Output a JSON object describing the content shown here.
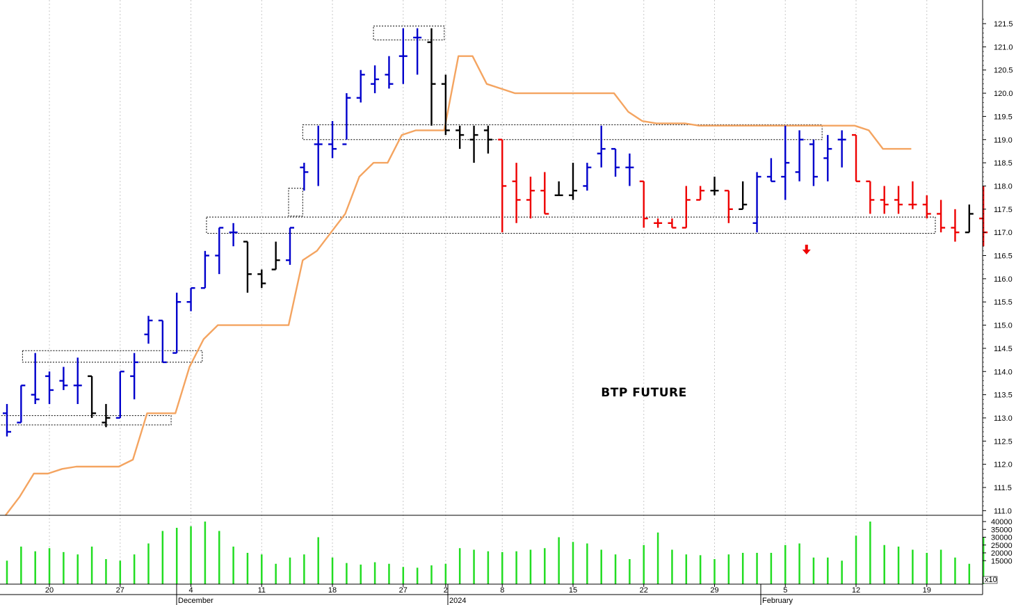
{
  "chart_data": {
    "type": "ohlc",
    "title": "BTP FUTURE",
    "price_axis": {
      "min": 111.0,
      "max": 121.5,
      "ticks": [
        "111.0",
        "111.5",
        "112.0",
        "112.5",
        "113.0",
        "113.5",
        "114.0",
        "114.5",
        "115.0",
        "115.5",
        "116.0",
        "116.5",
        "117.0",
        "117.5",
        "118.0",
        "118.5",
        "119.0",
        "119.5",
        "120.0",
        "120.5",
        "121.0",
        "121.5"
      ]
    },
    "volume_axis": {
      "max": 40000,
      "ticks": [
        "40000",
        "35000",
        "30000",
        "25000",
        "20000",
        "15000"
      ],
      "multiplier_label": "x10"
    },
    "x_axis": {
      "labels": [
        {
          "text": "20",
          "bar": 3
        },
        {
          "text": "27",
          "bar": 8
        },
        {
          "text": "December",
          "bar": 12
        },
        {
          "text": "4",
          "bar": 13
        },
        {
          "text": "11",
          "bar": 18
        },
        {
          "text": "18",
          "bar": 23
        },
        {
          "text": "27",
          "bar": 28
        },
        {
          "text": "2024",
          "bar": 31
        },
        {
          "text": "2",
          "bar": 31
        },
        {
          "text": "8",
          "bar": 35
        },
        {
          "text": "15",
          "bar": 40
        },
        {
          "text": "22",
          "bar": 45
        },
        {
          "text": "29",
          "bar": 50
        },
        {
          "text": "February",
          "bar": 53
        },
        {
          "text": "5",
          "bar": 55
        },
        {
          "text": "12",
          "bar": 60
        },
        {
          "text": "19",
          "bar": 65
        }
      ]
    },
    "colors": {
      "up": "#0000cc",
      "neutral": "#000000",
      "down": "#ee0000",
      "stop": "#f4a460",
      "volume": "#22dd22",
      "signal": "#ee0000"
    },
    "bars": [
      {
        "o": 113.1,
        "h": 113.3,
        "l": 112.6,
        "c": 112.7,
        "color": "up",
        "v": 15000
      },
      {
        "o": 112.9,
        "h": 113.7,
        "l": 112.9,
        "c": 113.7,
        "color": "up",
        "v": 24000
      },
      {
        "o": 113.5,
        "h": 114.4,
        "l": 113.3,
        "c": 113.4,
        "color": "up",
        "v": 21000
      },
      {
        "o": 113.9,
        "h": 114.0,
        "l": 113.3,
        "c": 113.6,
        "color": "up",
        "v": 23000
      },
      {
        "o": 113.8,
        "h": 114.1,
        "l": 113.6,
        "c": 113.7,
        "color": "up",
        "v": 20500
      },
      {
        "o": 113.7,
        "h": 114.3,
        "l": 113.3,
        "c": 113.7,
        "color": "up",
        "v": 19000
      },
      {
        "o": 113.9,
        "h": 113.9,
        "l": 113.0,
        "c": 113.1,
        "color": "neutral",
        "v": 24000
      },
      {
        "o": 112.9,
        "h": 113.3,
        "l": 112.8,
        "c": 113.0,
        "color": "neutral",
        "v": 16000
      },
      {
        "o": 113.0,
        "h": 114.0,
        "l": 113.0,
        "c": 114.0,
        "color": "up",
        "v": 15000
      },
      {
        "o": 113.9,
        "h": 114.4,
        "l": 113.4,
        "c": 114.2,
        "color": "up",
        "v": 19000
      },
      {
        "o": 114.8,
        "h": 115.2,
        "l": 114.6,
        "c": 115.1,
        "color": "up",
        "v": 26000
      },
      {
        "o": 115.1,
        "h": 115.1,
        "l": 114.2,
        "c": 114.2,
        "color": "up",
        "v": 34000
      },
      {
        "o": 114.4,
        "h": 115.7,
        "l": 114.4,
        "c": 115.5,
        "color": "up",
        "v": 36000
      },
      {
        "o": 115.5,
        "h": 115.8,
        "l": 115.3,
        "c": 115.8,
        "color": "up",
        "v": 37000
      },
      {
        "o": 115.8,
        "h": 116.6,
        "l": 115.8,
        "c": 116.5,
        "color": "up",
        "v": 40000
      },
      {
        "o": 116.5,
        "h": 117.1,
        "l": 116.1,
        "c": 117.1,
        "color": "up",
        "v": 34000
      },
      {
        "o": 117.0,
        "h": 117.2,
        "l": 116.7,
        "c": 117.0,
        "color": "up",
        "v": 24000
      },
      {
        "o": 116.8,
        "h": 116.8,
        "l": 115.7,
        "c": 116.1,
        "color": "neutral",
        "v": 20000
      },
      {
        "o": 116.1,
        "h": 116.2,
        "l": 115.8,
        "c": 115.9,
        "color": "neutral",
        "v": 19000
      },
      {
        "o": 116.2,
        "h": 116.8,
        "l": 116.2,
        "c": 116.4,
        "color": "neutral",
        "v": 13000
      },
      {
        "o": 116.4,
        "h": 117.1,
        "l": 116.3,
        "c": 117.1,
        "color": "up",
        "v": 17000
      },
      {
        "o": 118.4,
        "h": 118.5,
        "l": 117.9,
        "c": 118.3,
        "color": "up",
        "v": 19000
      },
      {
        "o": 118.9,
        "h": 119.3,
        "l": 118.0,
        "c": 118.9,
        "color": "up",
        "v": 30000
      },
      {
        "o": 118.9,
        "h": 119.4,
        "l": 118.6,
        "c": 118.8,
        "color": "up",
        "v": 17000
      },
      {
        "o": 118.9,
        "h": 120.0,
        "l": 119.0,
        "c": 119.9,
        "color": "up",
        "v": 13500
      },
      {
        "o": 119.9,
        "h": 120.5,
        "l": 119.8,
        "c": 120.4,
        "color": "up",
        "v": 12500
      },
      {
        "o": 120.2,
        "h": 120.6,
        "l": 120.0,
        "c": 120.3,
        "color": "up",
        "v": 14000
      },
      {
        "o": 120.4,
        "h": 120.8,
        "l": 120.1,
        "c": 120.2,
        "color": "up",
        "v": 13000
      },
      {
        "o": 120.8,
        "h": 121.4,
        "l": 120.2,
        "c": 120.8,
        "color": "up",
        "v": 11000
      },
      {
        "o": 121.2,
        "h": 121.4,
        "l": 120.4,
        "c": 121.2,
        "color": "up",
        "v": 10500
      },
      {
        "o": 121.1,
        "h": 121.4,
        "l": 119.3,
        "c": 120.2,
        "color": "neutral",
        "v": 12000
      },
      {
        "o": 120.2,
        "h": 120.4,
        "l": 119.1,
        "c": 119.2,
        "color": "neutral",
        "v": 13000
      },
      {
        "o": 119.2,
        "h": 119.3,
        "l": 118.8,
        "c": 119.1,
        "color": "neutral",
        "v": 23000
      },
      {
        "o": 119.0,
        "h": 119.3,
        "l": 118.5,
        "c": 119.1,
        "color": "neutral",
        "v": 22000
      },
      {
        "o": 119.2,
        "h": 119.3,
        "l": 118.7,
        "c": 119.0,
        "color": "neutral",
        "v": 21000
      },
      {
        "o": 119.0,
        "h": 119.0,
        "l": 117.0,
        "c": 118.0,
        "color": "down",
        "v": 20500
      },
      {
        "o": 118.1,
        "h": 118.5,
        "l": 117.2,
        "c": 117.7,
        "color": "down",
        "v": 21000
      },
      {
        "o": 117.7,
        "h": 118.2,
        "l": 117.3,
        "c": 117.9,
        "color": "down",
        "v": 22000
      },
      {
        "o": 117.9,
        "h": 118.3,
        "l": 117.4,
        "c": 117.4,
        "color": "down",
        "v": 23000
      },
      {
        "o": 117.8,
        "h": 118.1,
        "l": 117.8,
        "c": 117.8,
        "color": "neutral",
        "v": 30000
      },
      {
        "o": 117.8,
        "h": 118.5,
        "l": 117.7,
        "c": 117.9,
        "color": "neutral",
        "v": 27000
      },
      {
        "o": 118.0,
        "h": 118.5,
        "l": 117.9,
        "c": 118.4,
        "color": "up",
        "v": 26000
      },
      {
        "o": 118.7,
        "h": 119.3,
        "l": 118.4,
        "c": 118.8,
        "color": "up",
        "v": 22000
      },
      {
        "o": 118.8,
        "h": 118.8,
        "l": 118.2,
        "c": 118.4,
        "color": "up",
        "v": 19000
      },
      {
        "o": 118.4,
        "h": 118.7,
        "l": 118.0,
        "c": 118.4,
        "color": "up",
        "v": 16000
      },
      {
        "o": 118.1,
        "h": 118.1,
        "l": 117.1,
        "c": 117.3,
        "color": "down",
        "v": 25000
      },
      {
        "o": 117.2,
        "h": 117.3,
        "l": 117.1,
        "c": 117.2,
        "color": "down",
        "v": 33000
      },
      {
        "o": 117.2,
        "h": 117.3,
        "l": 117.1,
        "c": 117.1,
        "color": "down",
        "v": 22000
      },
      {
        "o": 117.1,
        "h": 118.0,
        "l": 117.1,
        "c": 117.7,
        "color": "down",
        "v": 19000
      },
      {
        "o": 117.7,
        "h": 118.0,
        "l": 117.7,
        "c": 117.9,
        "color": "down",
        "v": 18500
      },
      {
        "o": 117.9,
        "h": 118.2,
        "l": 117.8,
        "c": 117.9,
        "color": "neutral",
        "v": 16000
      },
      {
        "o": 117.9,
        "h": 117.9,
        "l": 117.2,
        "c": 117.5,
        "color": "down",
        "v": 19000
      },
      {
        "o": 117.5,
        "h": 118.1,
        "l": 117.5,
        "c": 117.6,
        "color": "neutral",
        "v": 20000
      },
      {
        "o": 117.2,
        "h": 118.3,
        "l": 117.0,
        "c": 118.2,
        "color": "up",
        "v": 20000
      },
      {
        "o": 118.2,
        "h": 118.6,
        "l": 118.1,
        "c": 118.1,
        "color": "up",
        "v": 20000
      },
      {
        "o": 118.2,
        "h": 119.3,
        "l": 117.7,
        "c": 118.5,
        "color": "up",
        "v": 25000
      },
      {
        "o": 118.3,
        "h": 119.2,
        "l": 118.1,
        "c": 119.0,
        "color": "up",
        "v": 26000
      },
      {
        "o": 118.9,
        "h": 119.0,
        "l": 118.0,
        "c": 118.2,
        "color": "up",
        "v": 17000
      },
      {
        "o": 118.6,
        "h": 119.1,
        "l": 118.1,
        "c": 118.8,
        "color": "up",
        "v": 17000
      },
      {
        "o": 119.0,
        "h": 119.2,
        "l": 118.4,
        "c": 119.0,
        "color": "up",
        "v": 15000
      },
      {
        "o": 119.1,
        "h": 119.1,
        "l": 118.1,
        "c": 118.1,
        "color": "down",
        "v": 31000
      },
      {
        "o": 118.1,
        "h": 118.1,
        "l": 117.4,
        "c": 117.7,
        "color": "down",
        "v": 40000
      },
      {
        "o": 117.7,
        "h": 118.0,
        "l": 117.4,
        "c": 117.6,
        "color": "down",
        "v": 25000
      },
      {
        "o": 117.7,
        "h": 118.0,
        "l": 117.4,
        "c": 117.6,
        "color": "down",
        "v": 24000
      },
      {
        "o": 117.6,
        "h": 118.1,
        "l": 117.5,
        "c": 117.6,
        "color": "down",
        "v": 22000
      },
      {
        "o": 117.6,
        "h": 117.8,
        "l": 117.3,
        "c": 117.4,
        "color": "down",
        "v": 20000
      },
      {
        "o": 117.4,
        "h": 117.7,
        "l": 117.0,
        "c": 117.1,
        "color": "down",
        "v": 22000
      },
      {
        "o": 117.1,
        "h": 117.5,
        "l": 116.8,
        "c": 117.0,
        "color": "down",
        "v": 17000
      },
      {
        "o": 117.0,
        "h": 117.6,
        "l": 117.0,
        "c": 117.4,
        "color": "neutral",
        "v": 13000
      },
      {
        "o": 117.3,
        "h": 118.0,
        "l": 116.7,
        "c": 117.0,
        "color": "down",
        "v": 30000
      }
    ],
    "stop_line": [
      110.9,
      111.3,
      111.8,
      111.8,
      111.9,
      111.95,
      111.95,
      111.95,
      111.95,
      112.1,
      113.1,
      113.1,
      113.1,
      114.1,
      114.7,
      115.0,
      115.0,
      115.0,
      115.0,
      115.0,
      115.0,
      116.4,
      116.6,
      117.0,
      117.4,
      118.2,
      118.5,
      118.5,
      119.1,
      119.2,
      119.2,
      119.2,
      120.8,
      120.8,
      120.2,
      120.1,
      120.0,
      120.0,
      120.0,
      120.0,
      120.0,
      120.0,
      120.0,
      120.0,
      119.6,
      119.4,
      119.35,
      119.35,
      119.35,
      119.3,
      119.3,
      119.3,
      119.3,
      119.3,
      119.3,
      119.3,
      119.3,
      119.3,
      119.3,
      119.3,
      119.3,
      119.2,
      118.8,
      118.8,
      118.8
    ],
    "boxes": [
      {
        "b1": -0.6,
        "b2": 11.6,
        "p1": 112.85,
        "p2": 113.05
      },
      {
        "b1": 1.1,
        "b2": 13.8,
        "p1": 114.2,
        "p2": 114.45
      },
      {
        "b1": 14.1,
        "b2": 65.6,
        "p1": 116.98,
        "p2": 117.33
      },
      {
        "b1": 19.9,
        "b2": 20.9,
        "p1": 117.35,
        "p2": 117.95
      },
      {
        "b1": 20.9,
        "b2": 57.6,
        "p1": 119.0,
        "p2": 119.32
      },
      {
        "b1": 25.9,
        "b2": 30.9,
        "p1": 121.15,
        "p2": 121.45
      }
    ],
    "signals": [
      {
        "bar": 56.5,
        "price": 116.6,
        "dir": "down"
      }
    ]
  }
}
